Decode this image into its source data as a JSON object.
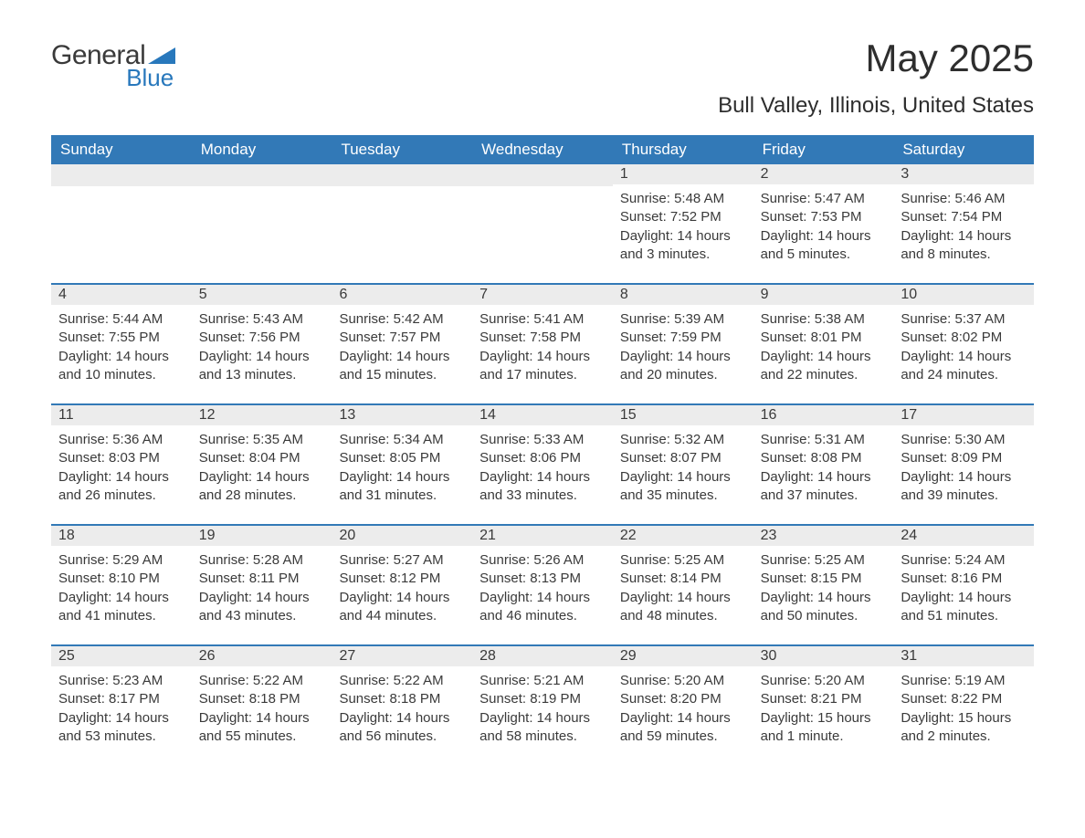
{
  "logo": {
    "word1": "General",
    "word2": "Blue"
  },
  "title": "May 2025",
  "location": "Bull Valley, Illinois, United States",
  "colors": {
    "header_bg": "#3279b7",
    "header_text": "#ffffff",
    "daynum_bg": "#ececec",
    "text": "#3a3a3a",
    "logo_blue": "#2878bc",
    "page_bg": "#ffffff",
    "week_border": "#3279b7"
  },
  "typography": {
    "title_fontsize": 42,
    "location_fontsize": 24,
    "header_fontsize": 17,
    "daynum_fontsize": 16,
    "body_fontsize": 15
  },
  "dayNames": [
    "Sunday",
    "Monday",
    "Tuesday",
    "Wednesday",
    "Thursday",
    "Friday",
    "Saturday"
  ],
  "weeks": [
    [
      {
        "num": "",
        "sunrise": "",
        "sunset": "",
        "daylight": ""
      },
      {
        "num": "",
        "sunrise": "",
        "sunset": "",
        "daylight": ""
      },
      {
        "num": "",
        "sunrise": "",
        "sunset": "",
        "daylight": ""
      },
      {
        "num": "",
        "sunrise": "",
        "sunset": "",
        "daylight": ""
      },
      {
        "num": "1",
        "sunrise": "Sunrise: 5:48 AM",
        "sunset": "Sunset: 7:52 PM",
        "daylight": "Daylight: 14 hours and 3 minutes."
      },
      {
        "num": "2",
        "sunrise": "Sunrise: 5:47 AM",
        "sunset": "Sunset: 7:53 PM",
        "daylight": "Daylight: 14 hours and 5 minutes."
      },
      {
        "num": "3",
        "sunrise": "Sunrise: 5:46 AM",
        "sunset": "Sunset: 7:54 PM",
        "daylight": "Daylight: 14 hours and 8 minutes."
      }
    ],
    [
      {
        "num": "4",
        "sunrise": "Sunrise: 5:44 AM",
        "sunset": "Sunset: 7:55 PM",
        "daylight": "Daylight: 14 hours and 10 minutes."
      },
      {
        "num": "5",
        "sunrise": "Sunrise: 5:43 AM",
        "sunset": "Sunset: 7:56 PM",
        "daylight": "Daylight: 14 hours and 13 minutes."
      },
      {
        "num": "6",
        "sunrise": "Sunrise: 5:42 AM",
        "sunset": "Sunset: 7:57 PM",
        "daylight": "Daylight: 14 hours and 15 minutes."
      },
      {
        "num": "7",
        "sunrise": "Sunrise: 5:41 AM",
        "sunset": "Sunset: 7:58 PM",
        "daylight": "Daylight: 14 hours and 17 minutes."
      },
      {
        "num": "8",
        "sunrise": "Sunrise: 5:39 AM",
        "sunset": "Sunset: 7:59 PM",
        "daylight": "Daylight: 14 hours and 20 minutes."
      },
      {
        "num": "9",
        "sunrise": "Sunrise: 5:38 AM",
        "sunset": "Sunset: 8:01 PM",
        "daylight": "Daylight: 14 hours and 22 minutes."
      },
      {
        "num": "10",
        "sunrise": "Sunrise: 5:37 AM",
        "sunset": "Sunset: 8:02 PM",
        "daylight": "Daylight: 14 hours and 24 minutes."
      }
    ],
    [
      {
        "num": "11",
        "sunrise": "Sunrise: 5:36 AM",
        "sunset": "Sunset: 8:03 PM",
        "daylight": "Daylight: 14 hours and 26 minutes."
      },
      {
        "num": "12",
        "sunrise": "Sunrise: 5:35 AM",
        "sunset": "Sunset: 8:04 PM",
        "daylight": "Daylight: 14 hours and 28 minutes."
      },
      {
        "num": "13",
        "sunrise": "Sunrise: 5:34 AM",
        "sunset": "Sunset: 8:05 PM",
        "daylight": "Daylight: 14 hours and 31 minutes."
      },
      {
        "num": "14",
        "sunrise": "Sunrise: 5:33 AM",
        "sunset": "Sunset: 8:06 PM",
        "daylight": "Daylight: 14 hours and 33 minutes."
      },
      {
        "num": "15",
        "sunrise": "Sunrise: 5:32 AM",
        "sunset": "Sunset: 8:07 PM",
        "daylight": "Daylight: 14 hours and 35 minutes."
      },
      {
        "num": "16",
        "sunrise": "Sunrise: 5:31 AM",
        "sunset": "Sunset: 8:08 PM",
        "daylight": "Daylight: 14 hours and 37 minutes."
      },
      {
        "num": "17",
        "sunrise": "Sunrise: 5:30 AM",
        "sunset": "Sunset: 8:09 PM",
        "daylight": "Daylight: 14 hours and 39 minutes."
      }
    ],
    [
      {
        "num": "18",
        "sunrise": "Sunrise: 5:29 AM",
        "sunset": "Sunset: 8:10 PM",
        "daylight": "Daylight: 14 hours and 41 minutes."
      },
      {
        "num": "19",
        "sunrise": "Sunrise: 5:28 AM",
        "sunset": "Sunset: 8:11 PM",
        "daylight": "Daylight: 14 hours and 43 minutes."
      },
      {
        "num": "20",
        "sunrise": "Sunrise: 5:27 AM",
        "sunset": "Sunset: 8:12 PM",
        "daylight": "Daylight: 14 hours and 44 minutes."
      },
      {
        "num": "21",
        "sunrise": "Sunrise: 5:26 AM",
        "sunset": "Sunset: 8:13 PM",
        "daylight": "Daylight: 14 hours and 46 minutes."
      },
      {
        "num": "22",
        "sunrise": "Sunrise: 5:25 AM",
        "sunset": "Sunset: 8:14 PM",
        "daylight": "Daylight: 14 hours and 48 minutes."
      },
      {
        "num": "23",
        "sunrise": "Sunrise: 5:25 AM",
        "sunset": "Sunset: 8:15 PM",
        "daylight": "Daylight: 14 hours and 50 minutes."
      },
      {
        "num": "24",
        "sunrise": "Sunrise: 5:24 AM",
        "sunset": "Sunset: 8:16 PM",
        "daylight": "Daylight: 14 hours and 51 minutes."
      }
    ],
    [
      {
        "num": "25",
        "sunrise": "Sunrise: 5:23 AM",
        "sunset": "Sunset: 8:17 PM",
        "daylight": "Daylight: 14 hours and 53 minutes."
      },
      {
        "num": "26",
        "sunrise": "Sunrise: 5:22 AM",
        "sunset": "Sunset: 8:18 PM",
        "daylight": "Daylight: 14 hours and 55 minutes."
      },
      {
        "num": "27",
        "sunrise": "Sunrise: 5:22 AM",
        "sunset": "Sunset: 8:18 PM",
        "daylight": "Daylight: 14 hours and 56 minutes."
      },
      {
        "num": "28",
        "sunrise": "Sunrise: 5:21 AM",
        "sunset": "Sunset: 8:19 PM",
        "daylight": "Daylight: 14 hours and 58 minutes."
      },
      {
        "num": "29",
        "sunrise": "Sunrise: 5:20 AM",
        "sunset": "Sunset: 8:20 PM",
        "daylight": "Daylight: 14 hours and 59 minutes."
      },
      {
        "num": "30",
        "sunrise": "Sunrise: 5:20 AM",
        "sunset": "Sunset: 8:21 PM",
        "daylight": "Daylight: 15 hours and 1 minute."
      },
      {
        "num": "31",
        "sunrise": "Sunrise: 5:19 AM",
        "sunset": "Sunset: 8:22 PM",
        "daylight": "Daylight: 15 hours and 2 minutes."
      }
    ]
  ]
}
